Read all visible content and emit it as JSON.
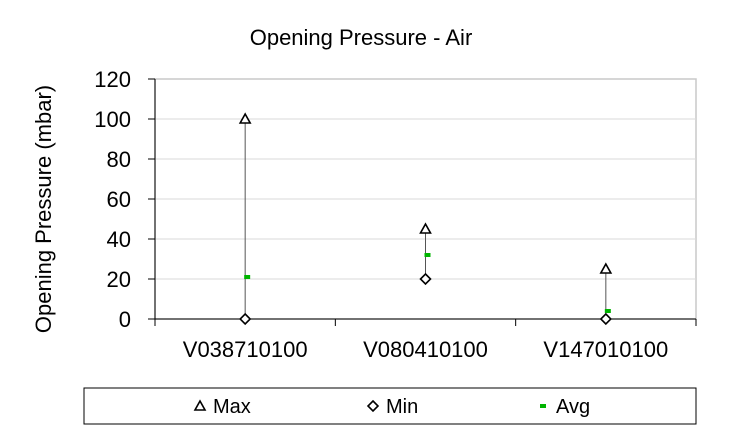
{
  "chart_data": {
    "type": "scatter",
    "title": "Opening Pressure - Air",
    "xlabel": "",
    "ylabel": "Opening Pressure (mbar)",
    "ylim": [
      0,
      120
    ],
    "yticks": [
      0,
      20,
      40,
      60,
      80,
      100,
      120
    ],
    "categories": [
      "V038710100",
      "V080410100",
      "V147010100"
    ],
    "series": [
      {
        "name": "Max",
        "marker": "triangle",
        "color": "#000000",
        "values": [
          100,
          45,
          25
        ]
      },
      {
        "name": "Min",
        "marker": "diamond",
        "color": "#000000",
        "values": [
          0,
          20,
          0
        ]
      },
      {
        "name": "Avg",
        "marker": "dash",
        "color": "#00b400",
        "values": [
          21,
          32,
          4
        ]
      }
    ],
    "grid": true,
    "legend": "bottom"
  }
}
